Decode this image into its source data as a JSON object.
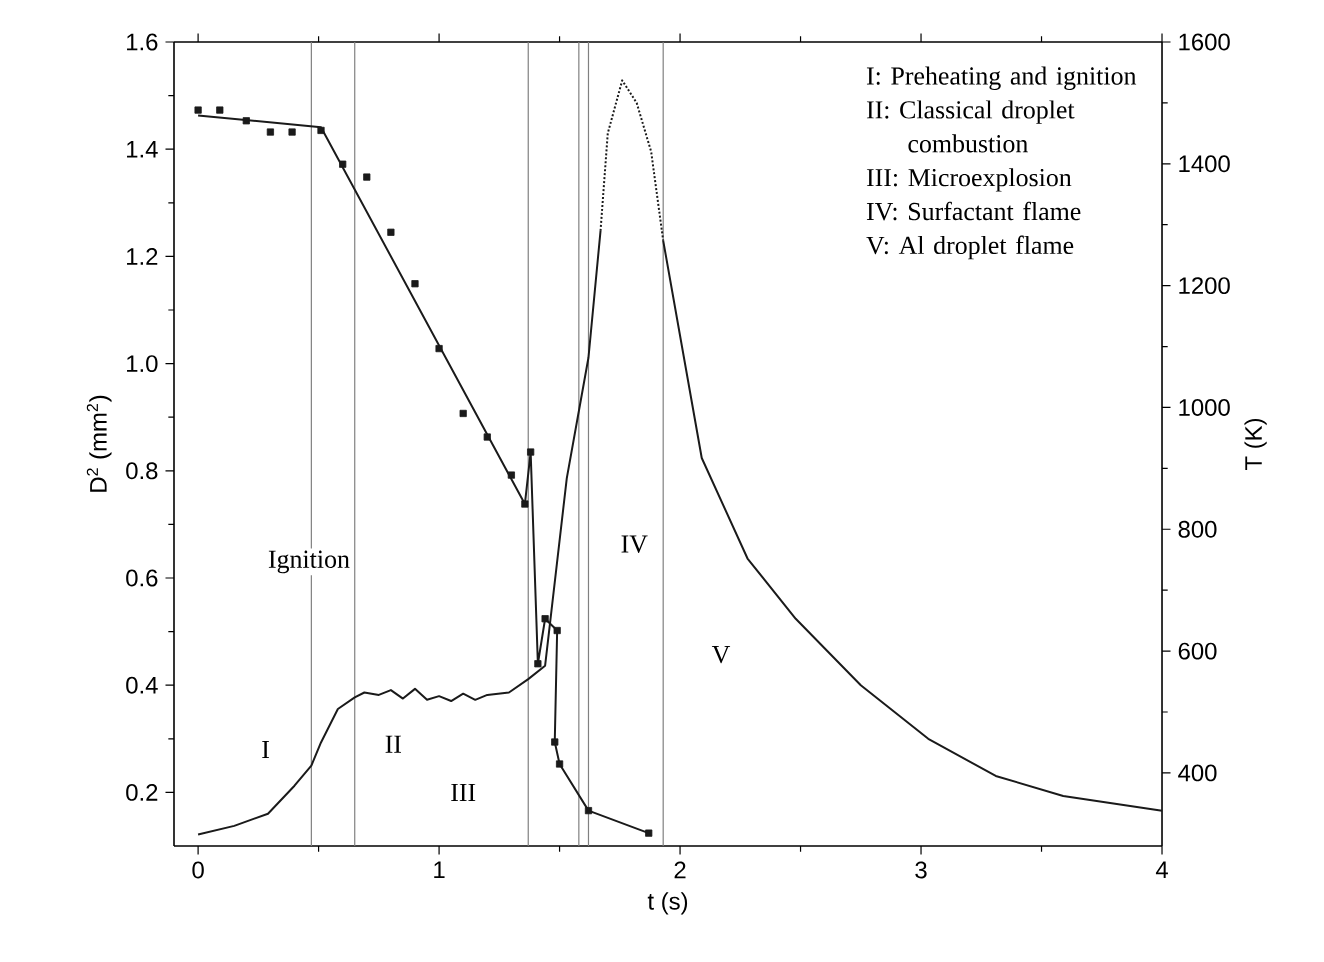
{
  "chart_data": {
    "type": "line",
    "xlabel": "t (s)",
    "ylabel": "D$^{2}$ (mm$^{2}$)",
    "y2label": "T (K)",
    "xlim": [
      -0.1,
      4
    ],
    "xticks": [
      0,
      1,
      2,
      3,
      4
    ],
    "ylim": [
      0.1,
      1.6
    ],
    "yticks": [
      0.2,
      0.4,
      0.6,
      0.8,
      {
        "value": 1.0,
        "label": "1.0"
      },
      1.2,
      1.4,
      1.6
    ],
    "y2lim": [
      280,
      1600
    ],
    "y2ticks": [
      400,
      600,
      800,
      1000,
      1200,
      1400,
      1600
    ],
    "series": [
      {
        "type": "scatter",
        "marker": "square",
        "color": "#1a1a1a",
        "x": [
          0,
          0.09,
          0.2,
          0.3,
          0.39,
          0.51,
          0.6,
          0.7,
          0.8,
          0.9,
          1.0,
          1.1,
          1.2,
          1.3,
          1.356,
          1.38,
          1.41,
          1.44,
          1.49,
          1.48,
          1.5,
          1.62,
          1.87
        ],
        "values": [
          1.473,
          1.473,
          1.453,
          1.432,
          1.432,
          1.435,
          1.372,
          1.348,
          1.245,
          1.149,
          1.028,
          0.907,
          0.863,
          0.792,
          0.738,
          0.835,
          0.44,
          0.524,
          0.502,
          0.294,
          0.253,
          0.166,
          0.124
        ]
      },
      {
        "color": "#1a1a1a",
        "x": [
          0,
          0.51,
          1.356,
          1.38,
          1.41,
          1.44,
          1.49,
          1.48,
          1.5,
          1.62,
          1.87
        ],
        "values": [
          1.463,
          1.441,
          0.738,
          0.835,
          0.44,
          0.524,
          0.502,
          0.294,
          0.253,
          0.166,
          0.124
        ]
      },
      {
        "axis": "y2",
        "color": "#1a1a1a",
        "x": [
          0,
          0.15,
          0.29,
          0.4,
          0.47,
          0.51,
          0.58,
          0.65,
          0.69,
          0.75,
          0.8,
          0.85,
          0.9,
          0.95,
          1.0,
          1.05,
          1.1,
          1.15,
          1.2,
          1.29,
          1.37,
          1.44,
          1.53,
          1.62,
          1.67
        ],
        "values": [
          299,
          313,
          333,
          379,
          412,
          450,
          505,
          524,
          532,
          528,
          536,
          522,
          538,
          520,
          526,
          518,
          530,
          520,
          528,
          532,
          554,
          576,
          884,
          1082,
          1290
        ]
      },
      {
        "axis": "y2",
        "line_style": "dotted",
        "color": "#1a1a1a",
        "x": [
          1.67,
          1.7,
          1.76,
          1.82,
          1.88,
          1.93
        ],
        "values": [
          1290,
          1450,
          1537,
          1500,
          1420,
          1274
        ]
      },
      {
        "axis": "y2",
        "color": "#1a1a1a",
        "x": [
          1.93,
          2.09,
          2.28,
          2.48,
          2.75,
          3.03,
          3.31,
          3.59,
          4.0
        ],
        "values": [
          1274,
          917,
          752,
          653,
          544,
          456,
          395,
          362,
          338
        ]
      }
    ],
    "ref_lines": [
      {
        "axis": "x",
        "value": 0.47,
        "color": "#808080"
      },
      {
        "axis": "x",
        "value": 0.65,
        "color": "#808080"
      },
      {
        "axis": "x",
        "value": 1.37,
        "color": "#808080"
      },
      {
        "axis": "x",
        "value": 1.58,
        "color": "#808080"
      },
      {
        "axis": "x",
        "value": 1.62,
        "color": "#808080"
      },
      {
        "axis": "x",
        "value": 1.93,
        "color": "#808080"
      }
    ],
    "annotations": [
      {
        "text": "Ignition",
        "x": 0.46,
        "y": 0.63
      },
      {
        "text": "I",
        "x": 0.28,
        "y": 0.28
      },
      {
        "text": "II",
        "x": 0.81,
        "y": 0.29
      },
      {
        "text": "III",
        "x": 1.1,
        "y": 0.2
      },
      {
        "text": "IV",
        "x": 1.81,
        "y": 0.663
      },
      {
        "text": "V",
        "x": 2.17,
        "y": 0.457
      },
      "I:   Preheating and ignition",
      "II:  Classical droplet combustion",
      "III: Microexplosion",
      "IV: Surfactant flame",
      "V:  Al droplet flame"
    ]
  }
}
